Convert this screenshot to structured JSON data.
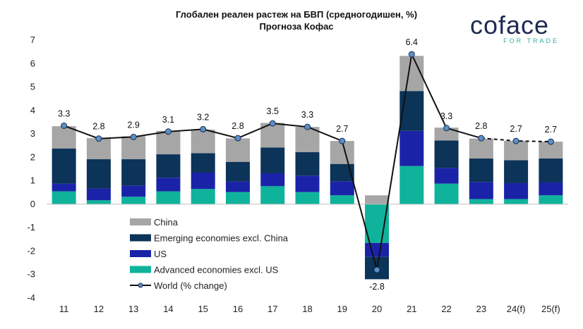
{
  "logo": {
    "brand": "coface",
    "tagline": "FOR TRADE"
  },
  "chart_data": {
    "type": "bar",
    "stacked": true,
    "title": "Глобален реален растеж на БВП (средногодишен, %)",
    "subtitle": "Прогноза Кофас",
    "categories": [
      "11",
      "12",
      "13",
      "14",
      "15",
      "16",
      "17",
      "18",
      "19",
      "20",
      "21",
      "22",
      "23",
      "24(f)",
      "25(f)"
    ],
    "ylim": [
      -4,
      7
    ],
    "yticks": [
      -4,
      -3,
      -2,
      -1,
      0,
      1,
      2,
      3,
      4,
      5,
      6,
      7
    ],
    "series": [
      {
        "name": "Advanced economies excl. US",
        "color": "#0fb39b",
        "values": [
          0.55,
          0.17,
          0.32,
          0.55,
          0.65,
          0.52,
          0.77,
          0.52,
          0.38,
          -1.65,
          1.63,
          0.88,
          0.22,
          0.22,
          0.38
        ]
      },
      {
        "name": "US",
        "color": "#1a23a8",
        "values": [
          0.33,
          0.5,
          0.48,
          0.58,
          0.7,
          0.45,
          0.55,
          0.7,
          0.6,
          -0.6,
          1.5,
          0.67,
          0.73,
          0.68,
          0.55
        ]
      },
      {
        "name": "Emerging economies excl. China",
        "color": "#0c3358",
        "values": [
          1.5,
          1.25,
          1.12,
          1.0,
          0.83,
          0.84,
          1.1,
          1.0,
          0.74,
          -0.95,
          1.7,
          1.17,
          1.0,
          0.98,
          1.02
        ]
      },
      {
        "name": "China",
        "color": "#a6a6a6",
        "values": [
          0.95,
          0.9,
          0.98,
          1.0,
          1.0,
          1.0,
          1.05,
          1.08,
          0.98,
          0.38,
          1.5,
          0.55,
          0.85,
          0.82,
          0.72
        ]
      }
    ],
    "line": {
      "name": "World (% change)",
      "values": [
        3.35,
        2.8,
        2.87,
        3.1,
        3.2,
        2.82,
        3.45,
        3.3,
        2.7,
        -2.8,
        6.4,
        3.25,
        2.82,
        2.7,
        2.67
      ],
      "labels": [
        "3.3",
        "2.8",
        "2.9",
        "3.1",
        "3.2",
        "2.8",
        "3.5",
        "3.3",
        "2.7",
        "-2.8",
        "6.4",
        "3.3",
        "2.8",
        "2.7",
        "2.7"
      ],
      "forecast_from_index": 12,
      "color": "#111111",
      "marker_color": "#5b8fc7"
    },
    "legend": [
      "China",
      "Emerging economies excl. China",
      "US",
      "Advanced economies excl. US",
      "World (% change)"
    ],
    "legend_position": "lower-middle",
    "xlabel": "",
    "ylabel": ""
  }
}
